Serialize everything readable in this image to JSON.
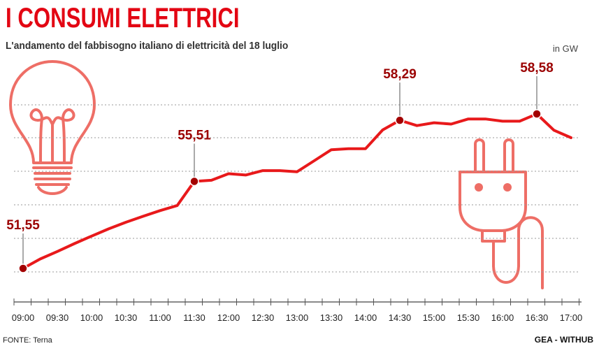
{
  "header": {
    "title": "I CONSUMI ELETTRICI",
    "subtitle": "L'andamento del fabbisogno italiano di elettricità del 18 luglio",
    "unit": "in GW"
  },
  "footer": {
    "source": "FONTE: Terna",
    "credit": "GEA - WITHUB"
  },
  "colors": {
    "line": "#e8191b",
    "marker": "#a30000",
    "grid": "#9a9a9a",
    "icon": "#ee6e66"
  },
  "icons": [
    "light-bulb-icon",
    "electric-plug-icon"
  ],
  "chart_data": {
    "type": "line",
    "title": "I CONSUMI ELETTRICI",
    "subtitle": "L'andamento del fabbisogno italiano di elettricità del 18 luglio",
    "unit": "in GW",
    "grid": "horizontal dashed",
    "categories": [
      "09:00",
      "09:30",
      "10:00",
      "10:30",
      "11:00",
      "11:30",
      "12:00",
      "12:30",
      "13:00",
      "13:30",
      "14:00",
      "14:30",
      "15:00",
      "15:30",
      "16:00",
      "16:30",
      "17:00"
    ],
    "series": [
      {
        "x": [
          "09:00",
          "09:15",
          "09:30",
          "09:45",
          "10:00",
          "10:15",
          "10:30",
          "10:45",
          "11:00",
          "11:15",
          "11:30",
          "11:45",
          "12:00",
          "12:15",
          "12:30",
          "12:45",
          "13:00",
          "13:15",
          "13:30",
          "13:45",
          "14:00",
          "14:15",
          "14:30",
          "14:45",
          "15:00",
          "15:15",
          "15:30",
          "15:45",
          "16:00",
          "16:15",
          "16:30",
          "16:45",
          "17:00"
        ],
        "values": [
          51.55,
          51.98,
          52.32,
          52.68,
          53.02,
          53.35,
          53.65,
          53.92,
          54.18,
          54.41,
          55.51,
          55.56,
          55.86,
          55.8,
          56.0,
          56.0,
          55.95,
          56.45,
          56.95,
          57.0,
          57.0,
          57.85,
          58.29,
          58.05,
          58.18,
          58.12,
          58.35,
          58.35,
          58.25,
          58.25,
          58.58,
          57.84,
          57.5
        ]
      }
    ],
    "annotations": [
      {
        "x": "09:00",
        "value": 51.55,
        "label": "51,55"
      },
      {
        "x": "11:30",
        "value": 55.51,
        "label": "55,51"
      },
      {
        "x": "14:30",
        "value": 58.29,
        "label": "58,29"
      },
      {
        "x": "16:30",
        "value": 58.58,
        "label": "58,58"
      }
    ]
  }
}
